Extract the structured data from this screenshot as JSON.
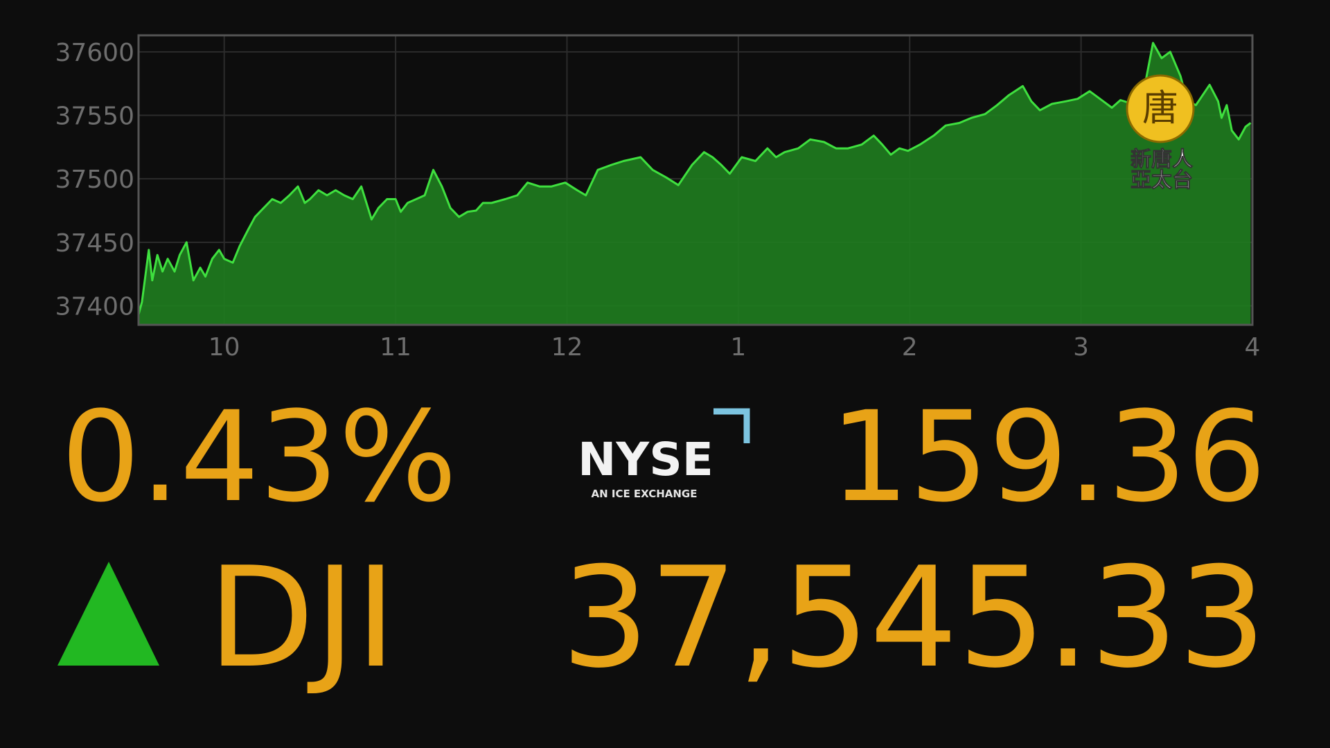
{
  "chart_data": {
    "type": "area",
    "x": [
      9.5,
      9.52,
      9.56,
      9.58,
      9.61,
      9.64,
      9.67,
      9.71,
      9.74,
      9.78,
      9.82,
      9.86,
      9.89,
      9.93,
      9.97,
      10,
      10.05,
      10.09,
      10.14,
      10.18,
      10.23,
      10.28,
      10.33,
      10.38,
      10.43,
      10.47,
      10.5,
      10.55,
      10.6,
      10.65,
      10.7,
      10.75,
      10.8,
      10.86,
      10.9,
      10.95,
      11,
      11.03,
      11.07,
      11.12,
      11.17,
      11.22,
      11.27,
      11.32,
      11.37,
      11.42,
      11.47,
      11.51,
      11.56,
      11.64,
      11.71,
      11.77,
      11.84,
      11.91,
      11.99,
      12.06,
      12.11,
      12.18,
      12.26,
      12.33,
      12.43,
      12.5,
      12.58,
      12.65,
      12.73,
      12.8,
      12.85,
      12.9,
      12.95,
      13.02,
      13.1,
      13.17,
      13.22,
      13.27,
      13.35,
      13.42,
      13.5,
      13.57,
      13.64,
      13.72,
      13.79,
      13.84,
      13.89,
      13.94,
      13.99,
      14.06,
      14.14,
      14.21,
      14.29,
      14.36,
      14.44,
      14.51,
      14.58,
      14.66,
      14.71,
      14.76,
      14.83,
      14.91,
      14.98,
      15.05,
      15.13,
      15.18,
      15.23,
      15.3,
      15.35,
      15.42,
      15.47,
      15.52,
      15.58,
      15.62,
      15.67,
      15.75,
      15.8,
      15.82,
      15.85,
      15.88,
      15.92,
      15.96,
      15.99
    ],
    "values": [
      37393,
      37403,
      37444,
      37420,
      37440,
      37427,
      37437,
      37427,
      37440,
      37450,
      37420,
      37430,
      37423,
      37437,
      37444,
      37437,
      37434,
      37447,
      37460,
      37470,
      37477,
      37484,
      37481,
      37487,
      37494,
      37481,
      37484,
      37491,
      37487,
      37491,
      37487,
      37484,
      37494,
      37468,
      37477,
      37484,
      37484,
      37474,
      37481,
      37484,
      37487,
      37507,
      37494,
      37477,
      37470,
      37474,
      37475,
      37481,
      37481,
      37484,
      37487,
      37497,
      37494,
      37494,
      37497,
      37491,
      37487,
      37507,
      37511,
      37514,
      37517,
      37507,
      37501,
      37495,
      37511,
      37521,
      37517,
      37511,
      37504,
      37517,
      37514,
      37524,
      37517,
      37521,
      37524,
      37531,
      37529,
      37524,
      37524,
      37527,
      37534,
      37527,
      37519,
      37524,
      37522,
      37527,
      37534,
      37542,
      37544,
      37548,
      37551,
      37558,
      37566,
      37573,
      37561,
      37554,
      37559,
      37561,
      37563,
      37569,
      37561,
      37556,
      37562,
      37559,
      37558,
      37607,
      37595,
      37600,
      37581,
      37561,
      37558,
      37574,
      37561,
      37548,
      37558,
      37538,
      37531,
      37541,
      37544
    ],
    "color": "#3fe03f",
    "xlim": [
      9.5,
      16
    ],
    "xticks": [
      10,
      11,
      12,
      {
        "value": 13,
        "label": "1"
      },
      {
        "value": 14,
        "label": "2"
      },
      {
        "value": 15,
        "label": "3"
      },
      {
        "value": 16,
        "label": "4"
      }
    ],
    "ylim": [
      37385,
      37613
    ],
    "yticks": [
      37400,
      37450,
      37500,
      37550,
      37600
    ],
    "grid": true
  },
  "quote": {
    "change_percent": "0.43%",
    "ticker": "DJI",
    "change_points": "159.36",
    "index_level": "37,545.33"
  },
  "exchange_logo": {
    "name": "NYSE",
    "tagline": "AN ICE EXCHANGE"
  },
  "watermark": {
    "emblem": "唐",
    "line1": "新唐人",
    "line2": "亞太台"
  }
}
